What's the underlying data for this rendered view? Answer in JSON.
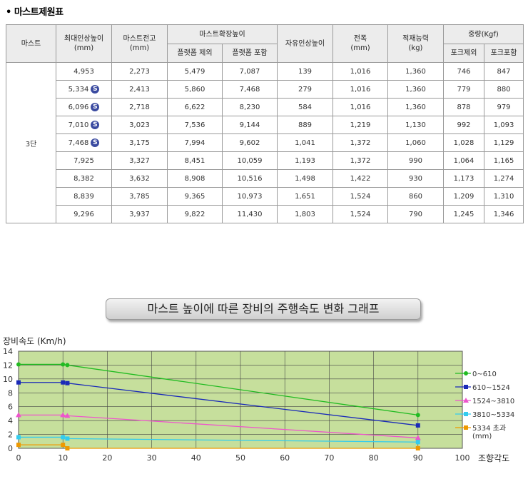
{
  "section_title": "• 마스트제원표",
  "table": {
    "headers": {
      "mast": "마스트",
      "max_lift": "최대인상높이",
      "max_lift_unit": "(mm)",
      "mast_height": "마스트전고",
      "mast_height_unit": "(mm)",
      "extended": "마스트확장높이",
      "ext_without": "플랫폼 제외",
      "ext_with": "플랫폼 포함",
      "free_lift": "자유인상높이",
      "width": "전폭",
      "width_unit": "(mm)",
      "capacity": "적재능력",
      "capacity_unit": "(kg)",
      "weight": "중량(Kgf)",
      "weight_without": "포크제외",
      "weight_with": "포크포함"
    },
    "mast_label": "3단",
    "rows": [
      {
        "max_lift": "4,953",
        "mark": "",
        "mast_height": "2,273",
        "ext_without": "5,479",
        "ext_with": "7,087",
        "free_lift": "139",
        "width": "1,016",
        "capacity": "1,360",
        "weight_without": "746",
        "weight_with": "847"
      },
      {
        "max_lift": "5,334",
        "mark": "S",
        "mast_height": "2,413",
        "ext_without": "5,860",
        "ext_with": "7,468",
        "free_lift": "279",
        "width": "1,016",
        "capacity": "1,360",
        "weight_without": "779",
        "weight_with": "880"
      },
      {
        "max_lift": "6,096",
        "mark": "S",
        "mast_height": "2,718",
        "ext_without": "6,622",
        "ext_with": "8,230",
        "free_lift": "584",
        "width": "1,016",
        "capacity": "1,360",
        "weight_without": "878",
        "weight_with": "979"
      },
      {
        "max_lift": "7,010",
        "mark": "S",
        "mast_height": "3,023",
        "ext_without": "7,536",
        "ext_with": "9,144",
        "free_lift": "889",
        "width": "1,219",
        "capacity": "1,130",
        "weight_without": "992",
        "weight_with": "1,093"
      },
      {
        "max_lift": "7,468",
        "mark": "S",
        "mast_height": "3,175",
        "ext_without": "7,994",
        "ext_with": "9,602",
        "free_lift": "1,041",
        "width": "1,372",
        "capacity": "1,060",
        "weight_without": "1,028",
        "weight_with": "1,129"
      },
      {
        "max_lift": "7,925",
        "mark": "",
        "mast_height": "3,327",
        "ext_without": "8,451",
        "ext_with": "10,059",
        "free_lift": "1,193",
        "width": "1,372",
        "capacity": "990",
        "weight_without": "1,064",
        "weight_with": "1,165"
      },
      {
        "max_lift": "8,382",
        "mark": "",
        "mast_height": "3,632",
        "ext_without": "8,908",
        "ext_with": "10,516",
        "free_lift": "1,498",
        "width": "1,422",
        "capacity": "930",
        "weight_without": "1,173",
        "weight_with": "1,274"
      },
      {
        "max_lift": "8,839",
        "mark": "",
        "mast_height": "3,785",
        "ext_without": "9,365",
        "ext_with": "10,973",
        "free_lift": "1,651",
        "width": "1,524",
        "capacity": "860",
        "weight_without": "1,209",
        "weight_with": "1,310"
      },
      {
        "max_lift": "9,296",
        "mark": "",
        "mast_height": "3,937",
        "ext_without": "9,822",
        "ext_with": "11,430",
        "free_lift": "1,803",
        "width": "1,524",
        "capacity": "790",
        "weight_without": "1,245",
        "weight_with": "1,346"
      }
    ]
  },
  "graph_title": "마스트 높이에 따른 장비의 주행속도 변화 그래프",
  "chart_data": {
    "type": "line",
    "title": "마스트 높이에 따른 장비의 주행속도 변화 그래프",
    "ylabel": "장비속도 (Km/h)",
    "xlabel": "조향각도",
    "xlim": [
      0,
      100
    ],
    "ylim": [
      0,
      14
    ],
    "x_ticks": [
      0,
      10,
      20,
      30,
      40,
      50,
      60,
      70,
      80,
      90,
      100
    ],
    "y_ticks": [
      0,
      2,
      4,
      6,
      8,
      10,
      12,
      14
    ],
    "grid": true,
    "background": "#c6df9c",
    "legend_position": "right",
    "legend_unit": "(mm)",
    "series": [
      {
        "name": "0~610",
        "color": "#22bb22",
        "marker": "circle",
        "points": [
          [
            0,
            12.1
          ],
          [
            10,
            12.1
          ],
          [
            11,
            12.0
          ],
          [
            90,
            4.8
          ]
        ]
      },
      {
        "name": "610~1524",
        "color": "#1a2ab8",
        "marker": "square",
        "points": [
          [
            0,
            9.5
          ],
          [
            10,
            9.5
          ],
          [
            11,
            9.4
          ],
          [
            90,
            3.3
          ]
        ]
      },
      {
        "name": "1524~3810",
        "color": "#ee55cc",
        "marker": "triangle",
        "points": [
          [
            0,
            4.8
          ],
          [
            10,
            4.8
          ],
          [
            11,
            4.7
          ],
          [
            90,
            1.5
          ]
        ]
      },
      {
        "name": "3810~5334",
        "color": "#33ccee",
        "marker": "square",
        "points": [
          [
            0,
            1.6
          ],
          [
            10,
            1.6
          ],
          [
            11,
            1.4
          ],
          [
            90,
            0.9
          ]
        ]
      },
      {
        "name": "5334 초과",
        "color": "#ee9900",
        "marker": "square",
        "points": [
          [
            0,
            0.5
          ],
          [
            10,
            0.5
          ],
          [
            11,
            0.0
          ],
          [
            90,
            0.0
          ]
        ]
      }
    ]
  }
}
